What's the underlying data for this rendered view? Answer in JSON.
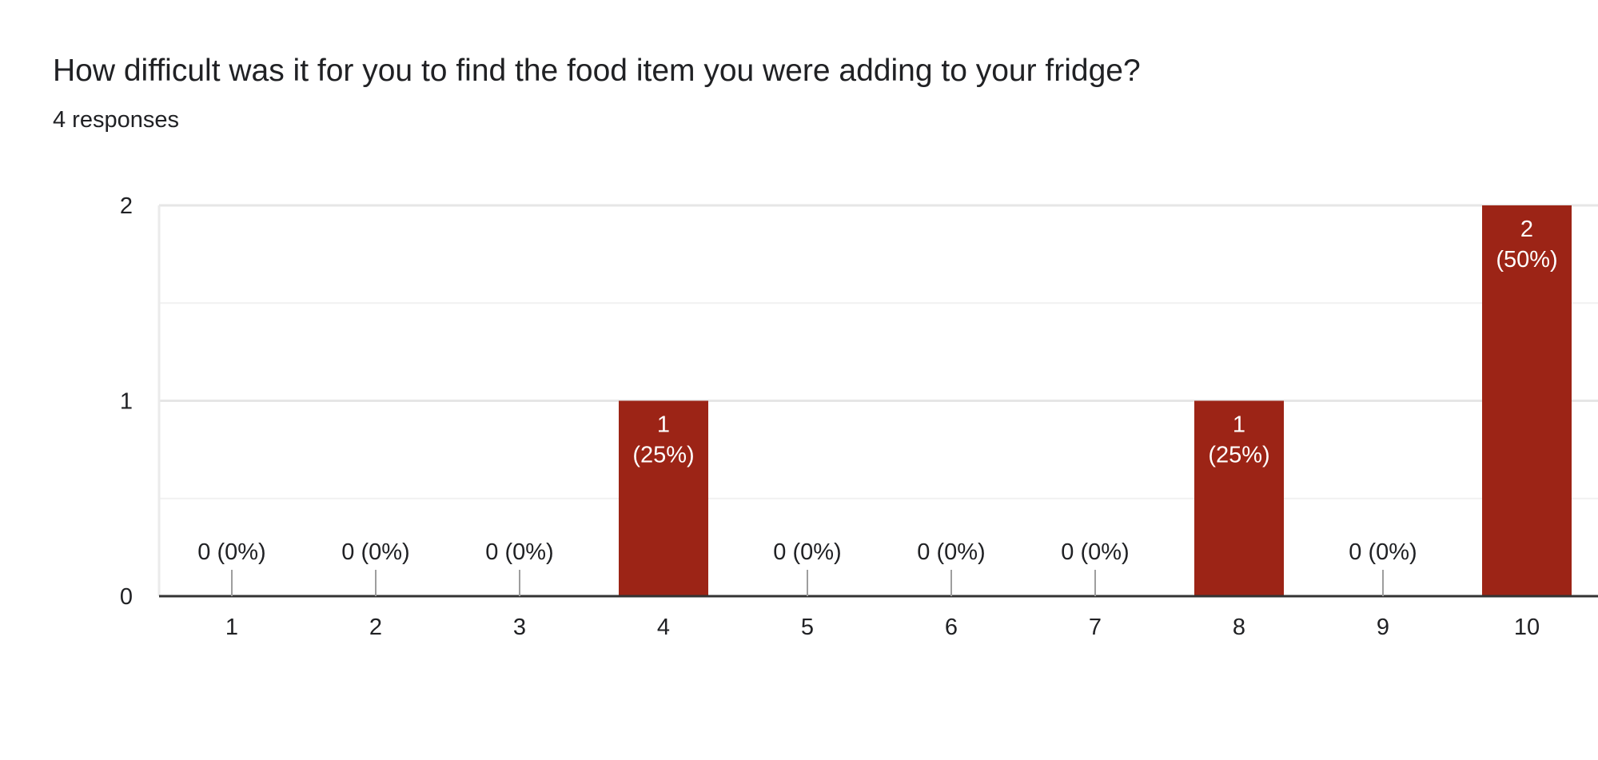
{
  "question": {
    "title": "How difficult was it for you to find the food item you were adding to your fridge?",
    "responses_label": "4 responses"
  },
  "colors": {
    "bar": "#9c2416",
    "bar_label": "#ffffff",
    "grid": "#ebebeb",
    "axis": "#333333",
    "text": "#202124"
  },
  "chart_data": {
    "type": "bar",
    "title": "How difficult was it for you to find the food item you were adding to your fridge?",
    "subtitle": "4 responses",
    "categories": [
      "1",
      "2",
      "3",
      "4",
      "5",
      "6",
      "7",
      "8",
      "9",
      "10"
    ],
    "values": [
      0,
      0,
      0,
      1,
      0,
      0,
      0,
      1,
      0,
      2
    ],
    "data_labels": [
      "0 (0%)",
      "0 (0%)",
      "0 (0%)",
      [
        "1",
        "(25%)"
      ],
      "0 (0%)",
      "0 (0%)",
      "0 (0%)",
      [
        "1",
        "(25%)"
      ],
      "0 (0%)",
      [
        "2",
        "(50%)"
      ]
    ],
    "ylim": [
      0,
      2
    ],
    "yticks": [
      "0",
      "1",
      "2"
    ],
    "grid": true,
    "xlabel": "",
    "ylabel": ""
  }
}
